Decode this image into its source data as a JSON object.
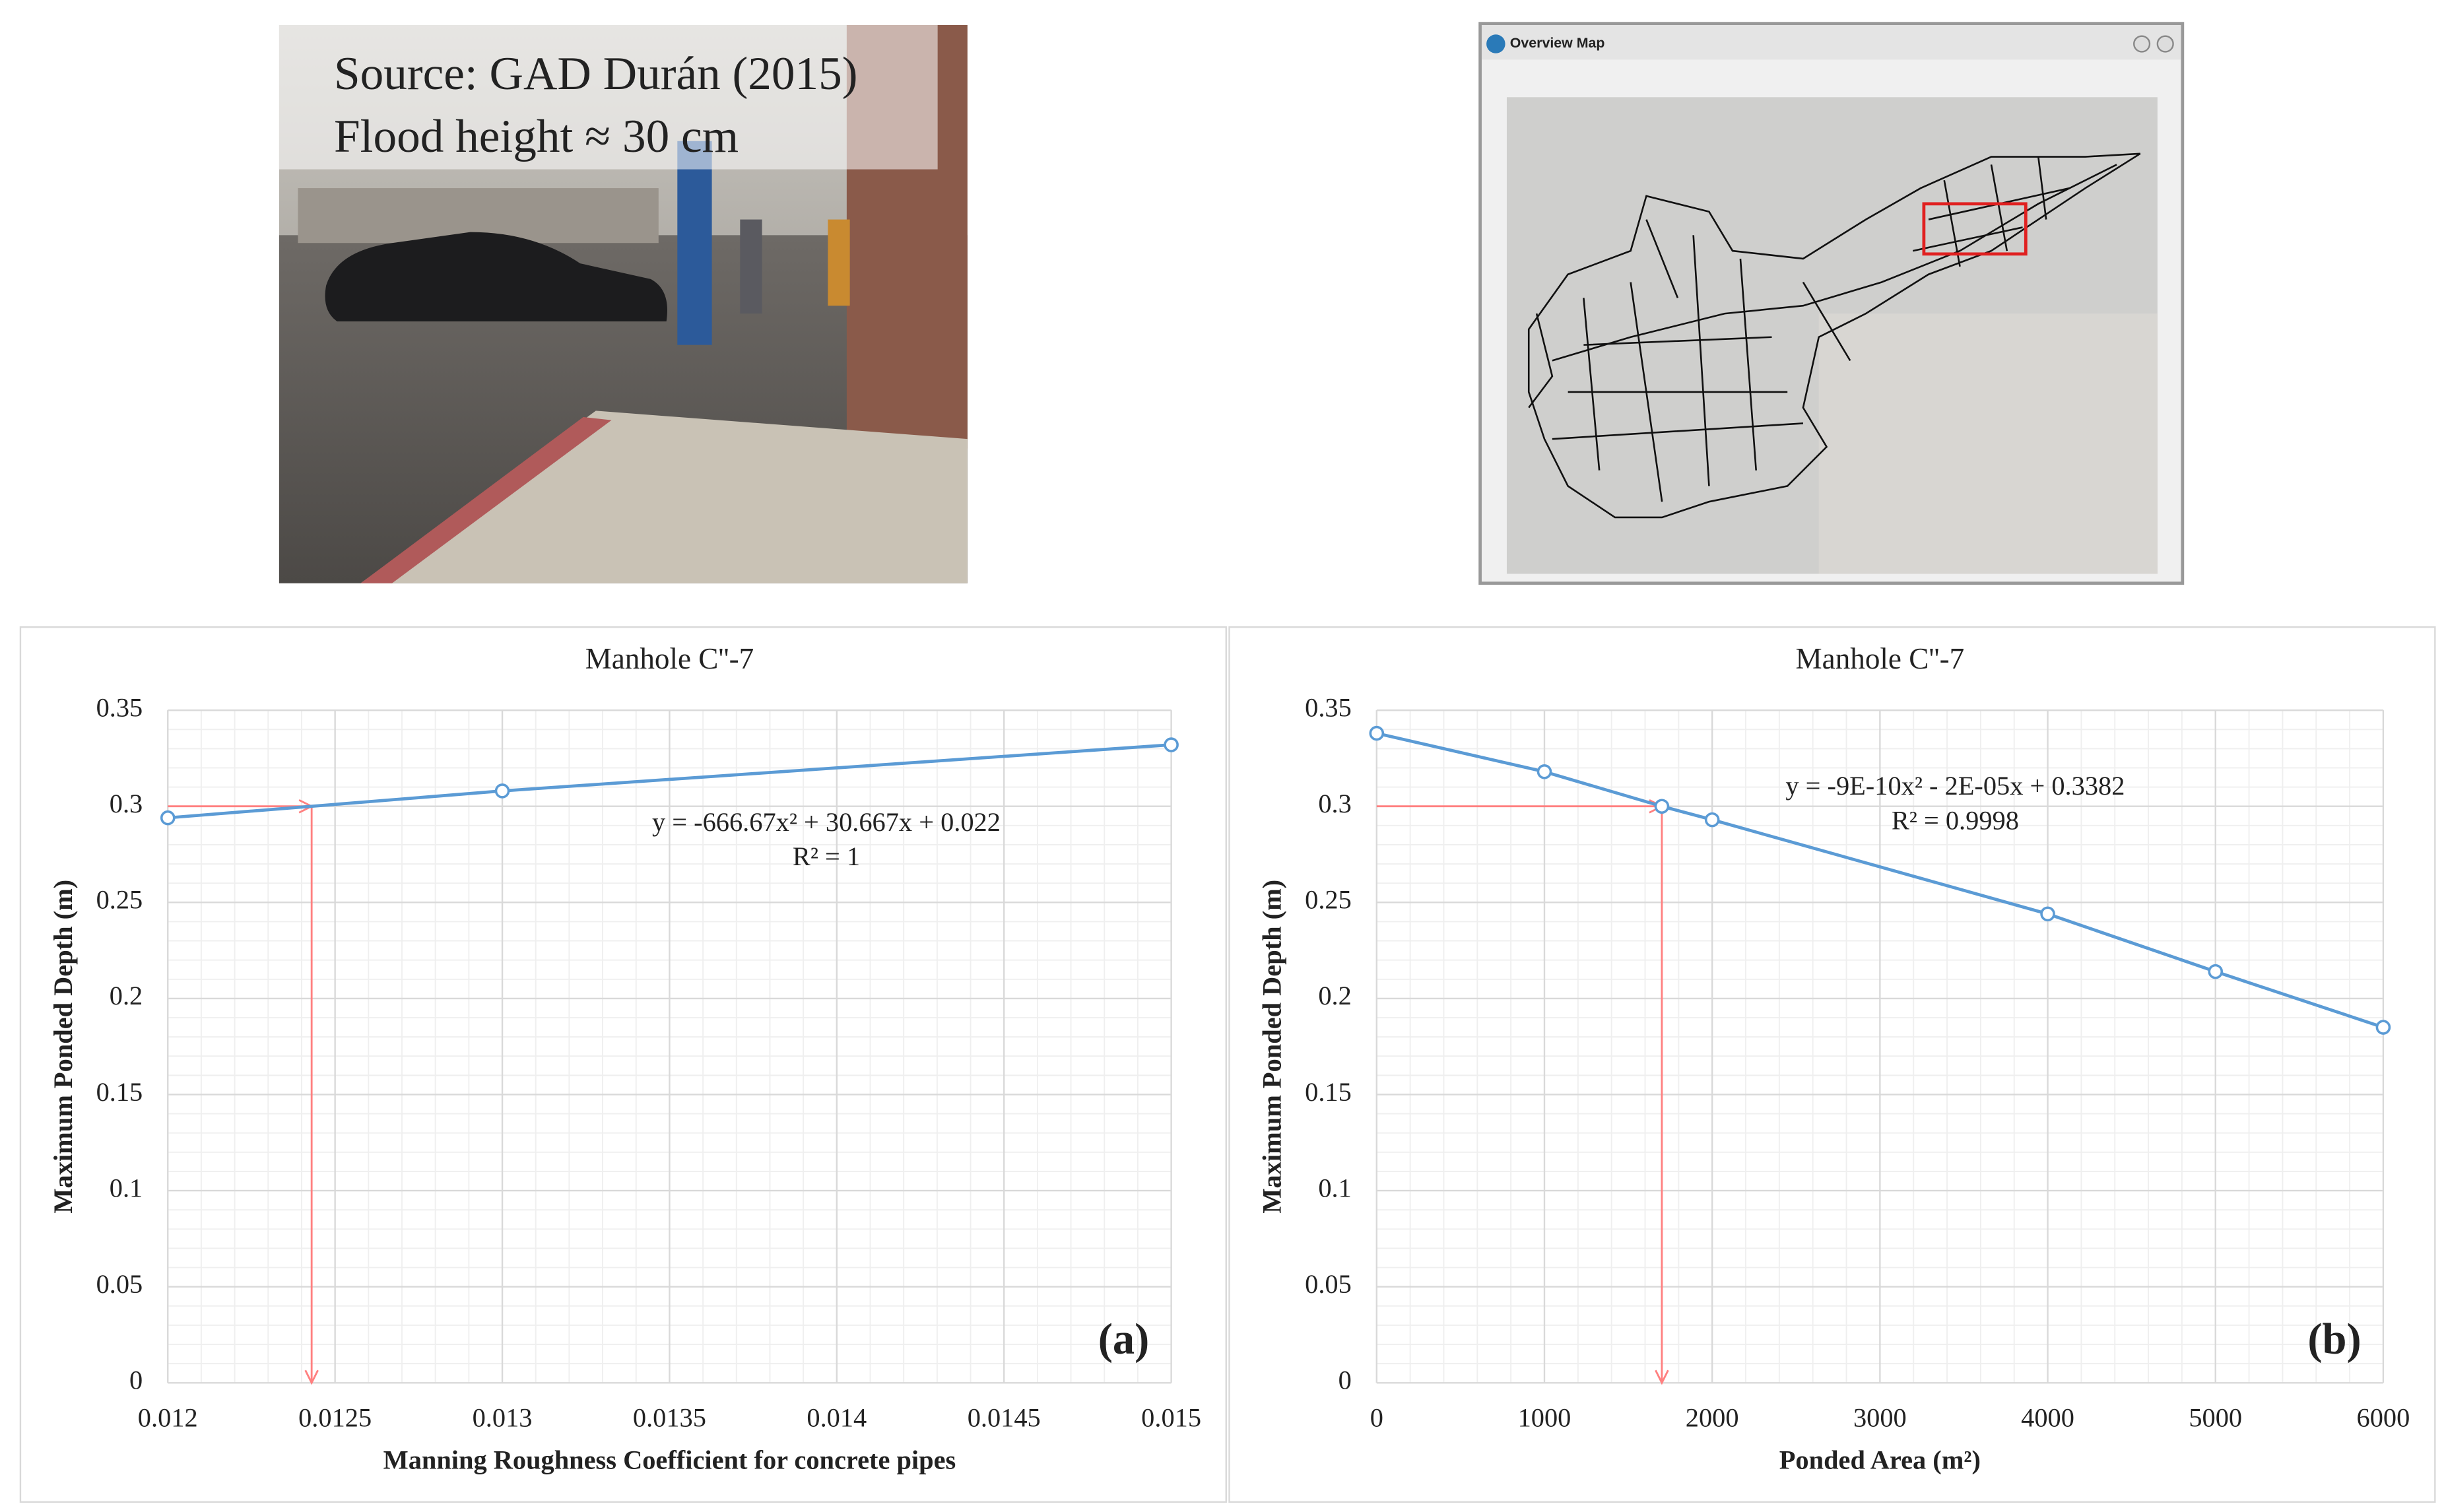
{
  "photo": {
    "source": "Source: GAD Durán (2015)",
    "flood": "Flood height ≈ 30 cm"
  },
  "map": {
    "title": "Overview Map"
  },
  "chart_data": [
    {
      "type": "line",
      "title": "Manhole C''-7",
      "xlabel": "Manning Roughness Coefficient for concrete pipes",
      "ylabel": "Maximum Ponded Depth (m)",
      "x": [
        0.012,
        0.013,
        0.015
      ],
      "series": [
        {
          "color": "#5b9bd5",
          "values": [
            0.294,
            0.308,
            0.332
          ]
        }
      ],
      "xlim": [
        0.012,
        0.015
      ],
      "xticks": [
        0.012,
        0.0125,
        0.013,
        0.0135,
        0.014,
        0.0145,
        0.015
      ],
      "ylim": [
        0,
        0.35
      ],
      "yticks": [
        0,
        0.05,
        0.1,
        0.15,
        0.2,
        0.25,
        0.3,
        0.35
      ],
      "grid": true,
      "minor_grid": true,
      "reference": {
        "x": 0.01243,
        "y": 0.3,
        "color": "#ff8080"
      },
      "equation": "y = -666.67x² + 30.667x + 0.022",
      "r2": "R² = 1",
      "panel_label": "(a)"
    },
    {
      "type": "line",
      "title": "Manhole C''-7",
      "xlabel": "Ponded Area (m²)",
      "ylabel": "Maximum Ponded Depth (m)",
      "x": [
        0,
        1000,
        1700,
        2000,
        4000,
        5000,
        6000
      ],
      "series": [
        {
          "color": "#5b9bd5",
          "values": [
            0.338,
            0.318,
            0.3,
            0.293,
            0.244,
            0.214,
            0.185
          ]
        }
      ],
      "xlim": [
        0,
        6000
      ],
      "xticks": [
        0,
        1000,
        2000,
        3000,
        4000,
        5000,
        6000
      ],
      "ylim": [
        0,
        0.35
      ],
      "yticks": [
        0,
        0.05,
        0.1,
        0.15,
        0.2,
        0.25,
        0.3,
        0.35
      ],
      "grid": true,
      "minor_grid": true,
      "reference": {
        "x": 1700,
        "y": 0.3,
        "color": "#ff8080"
      },
      "equation": "y = -9E-10x² - 2E-05x + 0.3382",
      "r2": "R² = 0.9998",
      "panel_label": "(b)"
    }
  ]
}
